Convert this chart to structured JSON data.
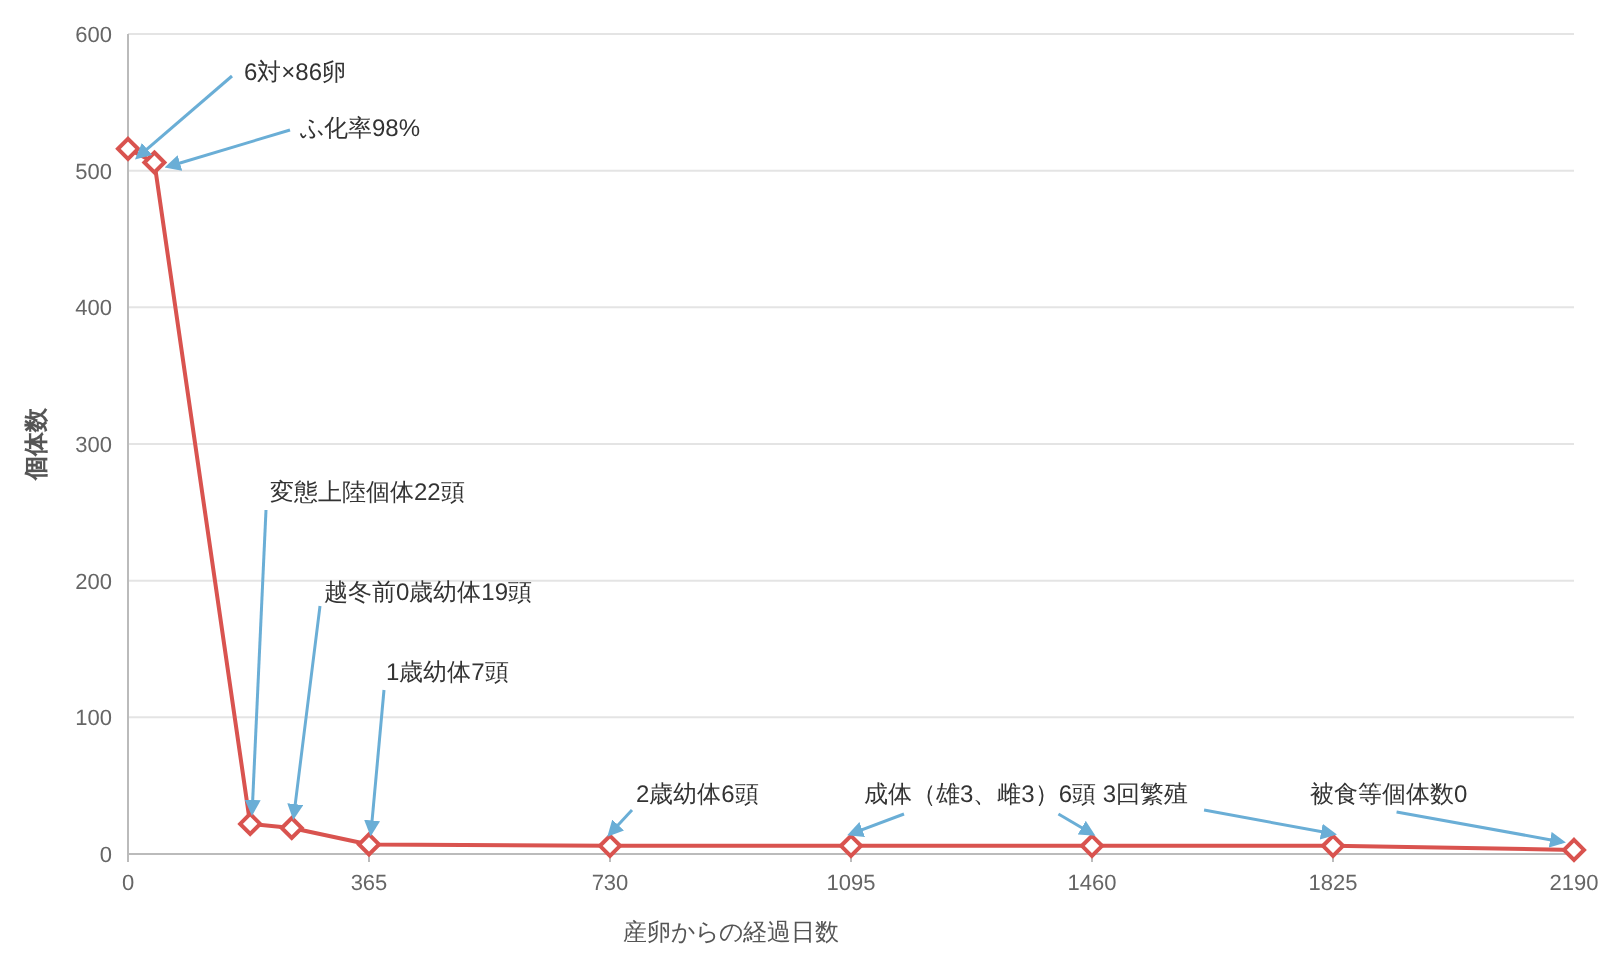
{
  "chart_data": {
    "type": "line",
    "xlabel": "産卵からの経過日数",
    "ylabel": "個体数",
    "x": [
      0,
      40,
      185,
      248,
      365,
      730,
      1095,
      1460,
      1825,
      2190
    ],
    "values": [
      516,
      506,
      22,
      19,
      7,
      6,
      6,
      6,
      6,
      3
    ],
    "color": "#d9534f",
    "marker": "diamond",
    "grid": "y",
    "xlim": [
      0,
      2190
    ],
    "xticks": [
      0,
      365,
      730,
      1095,
      1460,
      1825,
      2190
    ],
    "ylim": [
      0,
      600
    ],
    "yticks": [
      0,
      100,
      200,
      300,
      400,
      500,
      600
    ],
    "annotations": [
      {
        "text": "6対×86卵",
        "x": 0,
        "y": 516
      },
      {
        "text": "ふ化率98%",
        "x": 40,
        "y": 506
      },
      {
        "text": "変態上陸個体22頭",
        "x": 185,
        "y": 22
      },
      {
        "text": "越冬前0歳幼体19頭",
        "x": 248,
        "y": 19
      },
      {
        "text": "1歳幼体7頭",
        "x": 365,
        "y": 7
      },
      {
        "text": "2歳幼体6頭",
        "x": 730,
        "y": 6
      },
      {
        "text": "成体（雄3、雌3）6頭 3回繁殖",
        "x": 1460,
        "y": 6
      },
      {
        "text": "被食等個体数0",
        "x": 2190,
        "y": 3
      }
    ]
  }
}
